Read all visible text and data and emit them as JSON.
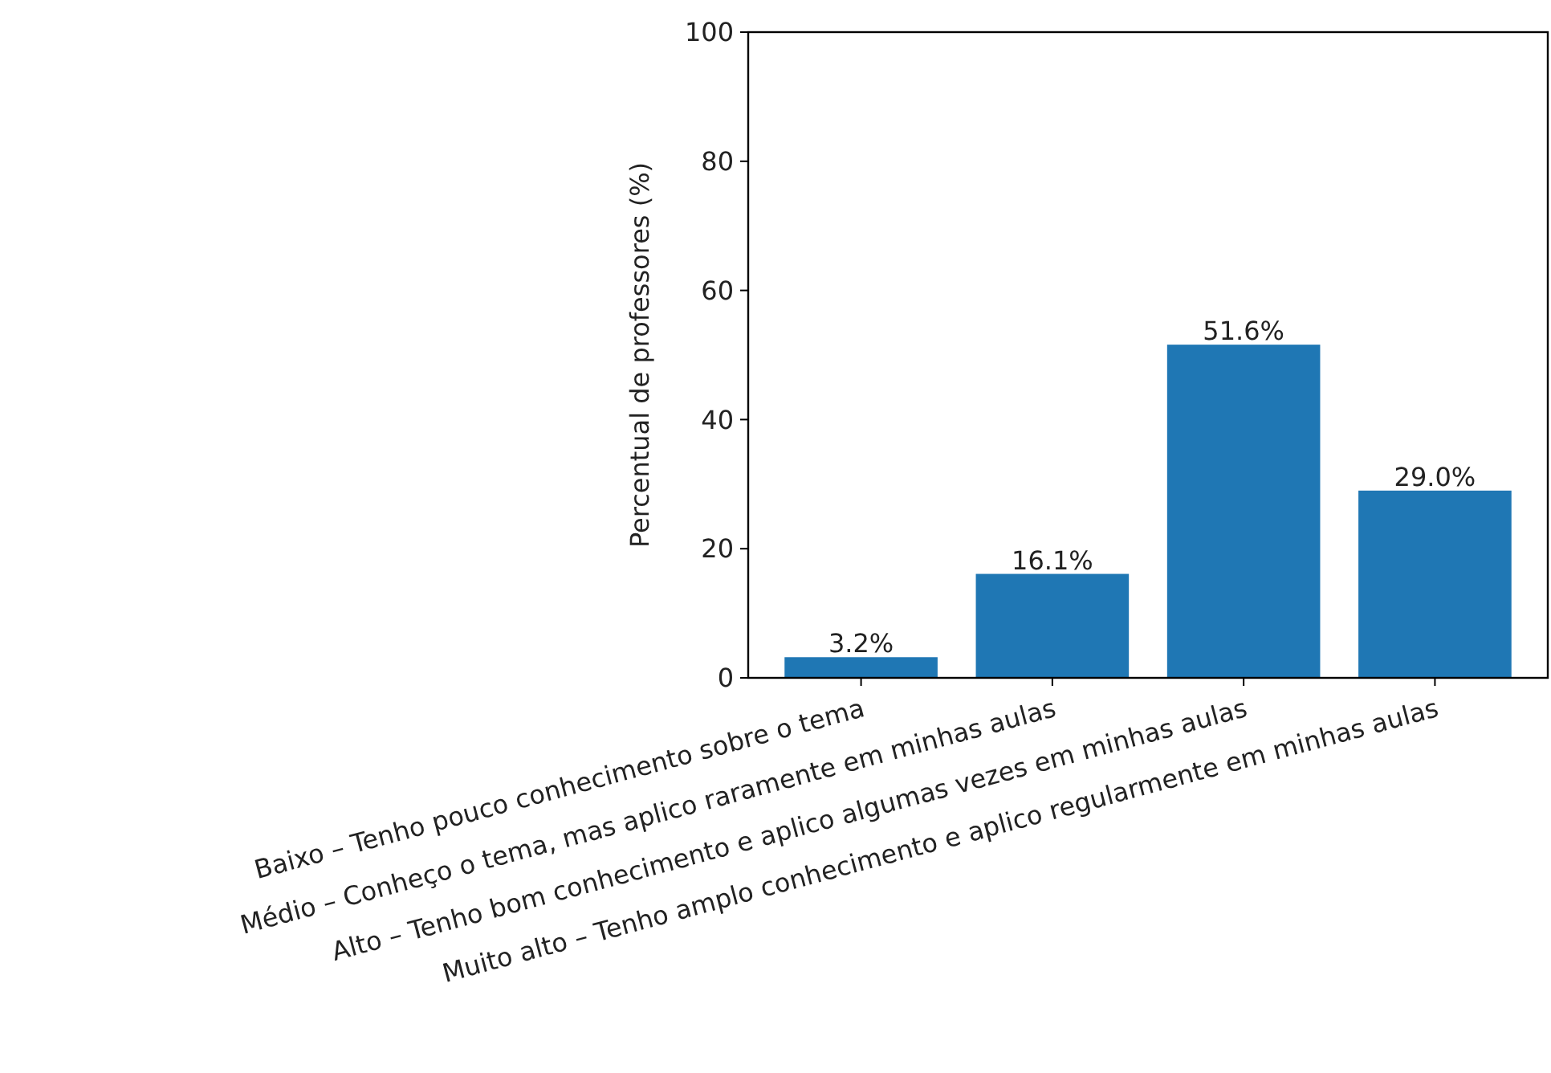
{
  "chart_data": {
    "type": "bar",
    "ylabel": "Percentual de professores (%)",
    "categories": [
      "Baixo – Tenho pouco conhecimento sobre o tema",
      "Médio – Conheço o tema, mas aplico raramente em minhas aulas",
      "Alto – Tenho bom conhecimento e aplico algumas vezes em minhas aulas",
      "Muito alto – Tenho amplo conhecimento e aplico regularmente em minhas aulas"
    ],
    "values": [
      3.2,
      16.1,
      51.6,
      29.0
    ],
    "value_labels": [
      "3.2%",
      "16.1%",
      "51.6%",
      "29.0%"
    ],
    "color": "#1f77b4",
    "ylim": [
      0,
      100
    ],
    "yticks": [
      0,
      20,
      40,
      60,
      80,
      100
    ]
  }
}
